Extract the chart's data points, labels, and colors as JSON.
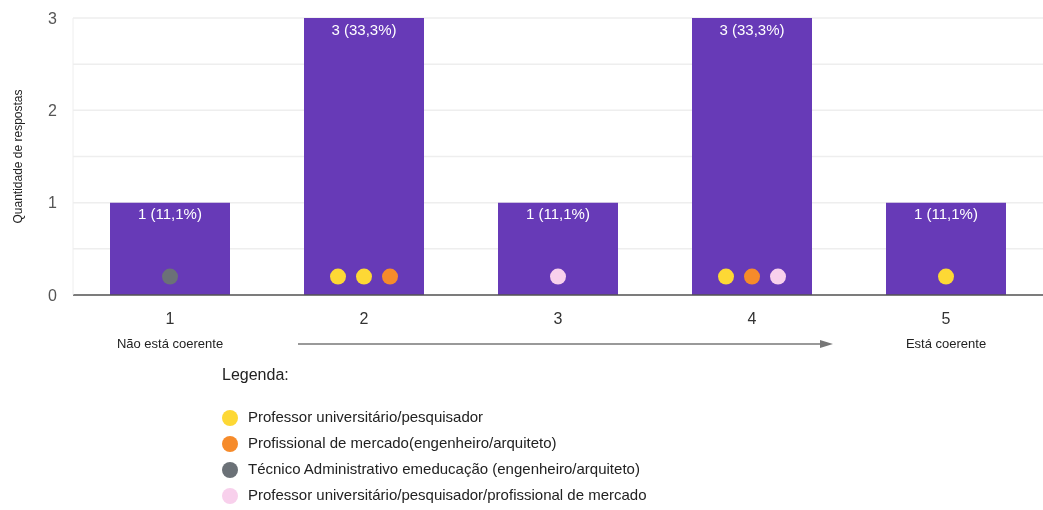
{
  "chart_data": {
    "type": "bar",
    "categories": [
      "1",
      "2",
      "3",
      "4",
      "5"
    ],
    "ylabel": "Quantidade de respostas",
    "ylim": [
      0,
      3
    ],
    "yticks": [
      0,
      {
        "value": 0.5,
        "label": null
      },
      1,
      {
        "value": 1.5,
        "label": null
      },
      2,
      {
        "value": 2.5,
        "label": null
      },
      3
    ],
    "grid": "y",
    "legend": "bottom",
    "legend_title": "Legenda:",
    "annotations": [
      "Não está coerente",
      "Está coerente"
    ],
    "series": [
      {
        "type": "bar",
        "color": "#673ab7",
        "values": [
          1,
          3,
          1,
          3,
          1
        ],
        "value_labels": [
          "1 (11,1%)",
          "3 (33,3%)",
          "1 (11,1%)",
          "3 (33,3%)",
          "1 (11,1%)"
        ]
      },
      {
        "type": "scatter",
        "name": "Professor universitário/pesquisador",
        "color": "#fdd835",
        "marker": "circle",
        "x": [
          "2",
          "2",
          "4",
          "5"
        ],
        "values": [
          0.2,
          0.2,
          0.2,
          0.2
        ]
      },
      {
        "type": "scatter",
        "name": "Profissional de mercado(engenheiro/arquiteto)",
        "color": "#f68b2b",
        "marker": "circle",
        "x": [
          "2",
          "4"
        ],
        "values": [
          0.2,
          0.2
        ]
      },
      {
        "type": "scatter",
        "name": "Técnico Administrativo emeducação (engenheiro/arquiteto)",
        "color": "#6b7177",
        "marker": "circle",
        "x": [
          "1"
        ],
        "values": [
          0.2
        ]
      },
      {
        "type": "scatter",
        "name": "Professor universitário/pesquisador/profissional de mercado",
        "color": "#f8d0ec",
        "marker": "circle",
        "x": [
          "3",
          "4"
        ],
        "values": [
          0.2,
          0.2
        ]
      }
    ]
  }
}
